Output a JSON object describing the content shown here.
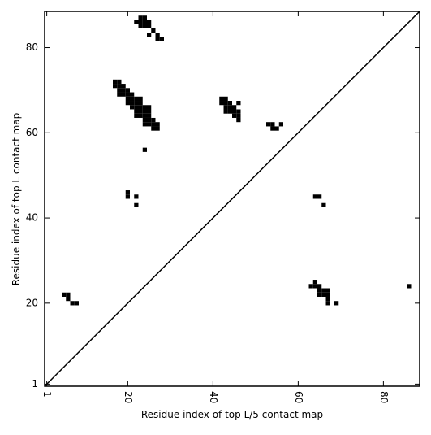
{
  "chart_data": {
    "type": "scatter",
    "xlabel": "Residue index of top L/5 contact map",
    "ylabel": "Residue index of top L contact map",
    "color": "#000000",
    "xlim": [
      0.5,
      88.5
    ],
    "ylim": [
      0.5,
      88.5
    ],
    "xticks": [
      1,
      20,
      40,
      60,
      80
    ],
    "yticks": [
      1,
      20,
      40,
      60,
      80
    ],
    "x": [
      22,
      23,
      24,
      23,
      24,
      25,
      23,
      24,
      25,
      26,
      25,
      27,
      27,
      28,
      17,
      18,
      17,
      18,
      19,
      18,
      19,
      20,
      18,
      19,
      20,
      21,
      20,
      21,
      22,
      23,
      20,
      21,
      22,
      23,
      21,
      22,
      23,
      24,
      25,
      22,
      23,
      24,
      25,
      22,
      23,
      24,
      25,
      24,
      25,
      26,
      24,
      25,
      26,
      27,
      26,
      27,
      24,
      42,
      43,
      42,
      43,
      44,
      46,
      43,
      44,
      45,
      43,
      44,
      45,
      46,
      45,
      46,
      46,
      53,
      54,
      56,
      54,
      55,
      20,
      20,
      22,
      22,
      5,
      6,
      6,
      7,
      8,
      64,
      65,
      66,
      64,
      63,
      64,
      65,
      65,
      66,
      67,
      65,
      66,
      67,
      67,
      67,
      69,
      86
    ],
    "values": [
      86,
      87,
      87,
      86,
      86,
      86,
      85,
      85,
      85,
      84,
      83,
      83,
      82,
      82,
      72,
      72,
      71,
      71,
      71,
      70,
      70,
      70,
      69,
      69,
      69,
      69,
      68,
      68,
      68,
      68,
      67,
      67,
      67,
      67,
      66,
      66,
      66,
      66,
      66,
      65,
      65,
      65,
      65,
      64,
      64,
      64,
      64,
      63,
      63,
      63,
      62,
      62,
      62,
      62,
      61,
      61,
      56,
      68,
      68,
      67,
      67,
      67,
      67,
      66,
      66,
      66,
      65,
      65,
      65,
      65,
      64,
      64,
      63,
      62,
      62,
      62,
      61,
      61,
      46,
      45,
      45,
      43,
      22,
      22,
      21,
      20,
      20,
      45,
      45,
      43,
      25,
      24,
      24,
      24,
      23,
      23,
      23,
      22,
      22,
      22,
      21,
      20,
      20,
      24
    ]
  }
}
